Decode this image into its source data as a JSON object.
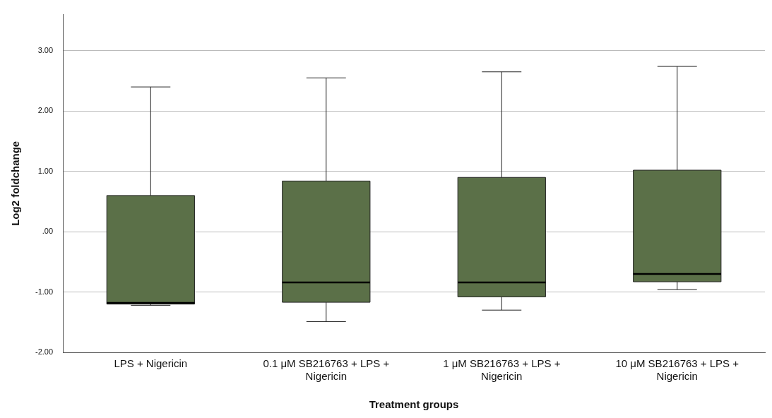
{
  "chart_data": {
    "type": "box",
    "xlabel": "Treatment groups",
    "ylabel": "Log2 foldchange",
    "categories": [
      "LPS + Nigericin",
      "0.1 μM SB216763 + LPS + Nigericin",
      "1 μM SB216763 + LPS + Nigericin",
      "10 μM SB216763 + LPS + Nigericin"
    ],
    "boxes": [
      {
        "low": -1.22,
        "q1": -1.2,
        "median": -1.18,
        "q3": 0.6,
        "high": 2.4
      },
      {
        "low": -1.49,
        "q1": -1.17,
        "median": -0.84,
        "q3": 0.84,
        "high": 2.55
      },
      {
        "low": -1.3,
        "q1": -1.08,
        "median": -0.84,
        "q3": 0.9,
        "high": 2.65
      },
      {
        "low": -0.96,
        "q1": -0.83,
        "median": -0.7,
        "q3": 1.02,
        "high": 2.74
      }
    ],
    "color": "#5b7048",
    "ylim": [
      -2,
      3.6
    ],
    "yticks": [
      {
        "value": -2,
        "label": "-2.00"
      },
      {
        "value": -1,
        "label": "-1.00"
      },
      {
        "value": 0,
        "label": ".00"
      },
      {
        "value": 1,
        "label": "1.00"
      },
      {
        "value": 2,
        "label": "2.00"
      },
      {
        "value": 3,
        "label": "3.00"
      }
    ],
    "grid": "y"
  }
}
